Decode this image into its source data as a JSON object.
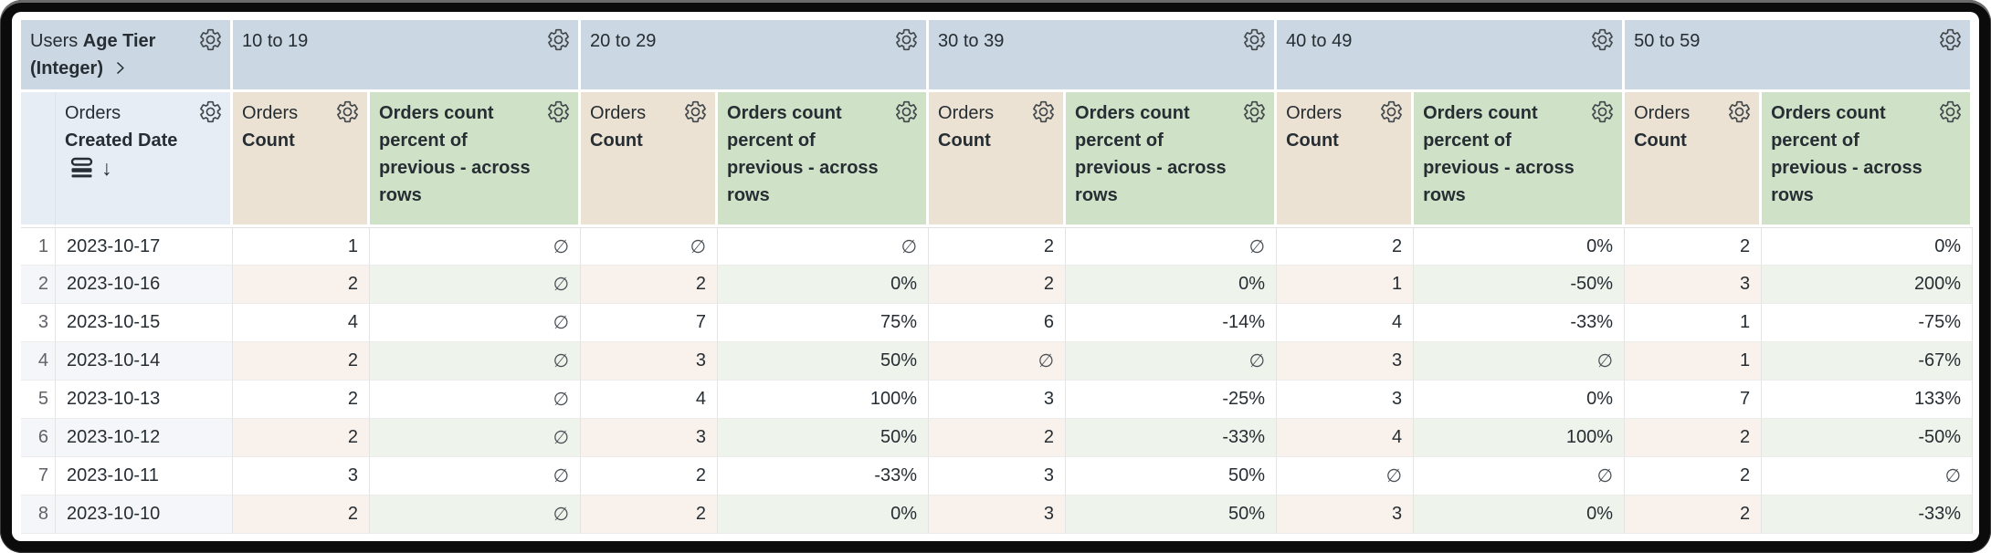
{
  "corner": {
    "view": "Users",
    "field": "Age Tier (Integer)"
  },
  "pivots": [
    {
      "label": "10 to 19"
    },
    {
      "label": "20 to 29"
    },
    {
      "label": "30 to 39"
    },
    {
      "label": "40 to 49"
    },
    {
      "label": "50 to 59"
    }
  ],
  "date_header": {
    "view": "Orders",
    "field": "Created Date"
  },
  "measures": {
    "count_view": "Orders",
    "count_field": "Count",
    "pct_label": "Orders count percent of previous - across rows"
  },
  "icons": {
    "header_settings": "gear-icon",
    "pivot_expand": "chevron-right-icon",
    "dimension_fill": "dimension-fill-icon",
    "sort_descending": "arrow-down-icon"
  },
  "null_symbol": "∅",
  "rows": [
    {
      "n": "1",
      "date": "2023-10-17",
      "values": [
        "1",
        "∅",
        "∅",
        "∅",
        "2",
        "∅",
        "2",
        "0%",
        "2",
        "0%"
      ]
    },
    {
      "n": "2",
      "date": "2023-10-16",
      "values": [
        "2",
        "∅",
        "2",
        "0%",
        "2",
        "0%",
        "1",
        "-50%",
        "3",
        "200%"
      ]
    },
    {
      "n": "3",
      "date": "2023-10-15",
      "values": [
        "4",
        "∅",
        "7",
        "75%",
        "6",
        "-14%",
        "4",
        "-33%",
        "1",
        "-75%"
      ]
    },
    {
      "n": "4",
      "date": "2023-10-14",
      "values": [
        "2",
        "∅",
        "3",
        "50%",
        "∅",
        "∅",
        "3",
        "∅",
        "1",
        "-67%"
      ]
    },
    {
      "n": "5",
      "date": "2023-10-13",
      "values": [
        "2",
        "∅",
        "4",
        "100%",
        "3",
        "-25%",
        "3",
        "0%",
        "7",
        "133%"
      ]
    },
    {
      "n": "6",
      "date": "2023-10-12",
      "values": [
        "2",
        "∅",
        "3",
        "50%",
        "2",
        "-33%",
        "4",
        "100%",
        "2",
        "-50%"
      ]
    },
    {
      "n": "7",
      "date": "2023-10-11",
      "values": [
        "3",
        "∅",
        "2",
        "-33%",
        "3",
        "50%",
        "∅",
        "∅",
        "2",
        "∅"
      ]
    },
    {
      "n": "8",
      "date": "2023-10-10",
      "values": [
        "2",
        "∅",
        "2",
        "0%",
        "3",
        "50%",
        "3",
        "0%",
        "2",
        "-33%"
      ]
    }
  ],
  "colors": {
    "text": "#262d33",
    "pivot_header_bg": "#cbd7e2",
    "date_header_bg": "#e7edf4",
    "count_header_bg": "#ebe2d3",
    "pct_header_bg": "#cfe2c8",
    "row_even_base": "#f4f6f9",
    "row_even_count": "#f9f1eb",
    "row_even_pct": "#eef4eb"
  }
}
